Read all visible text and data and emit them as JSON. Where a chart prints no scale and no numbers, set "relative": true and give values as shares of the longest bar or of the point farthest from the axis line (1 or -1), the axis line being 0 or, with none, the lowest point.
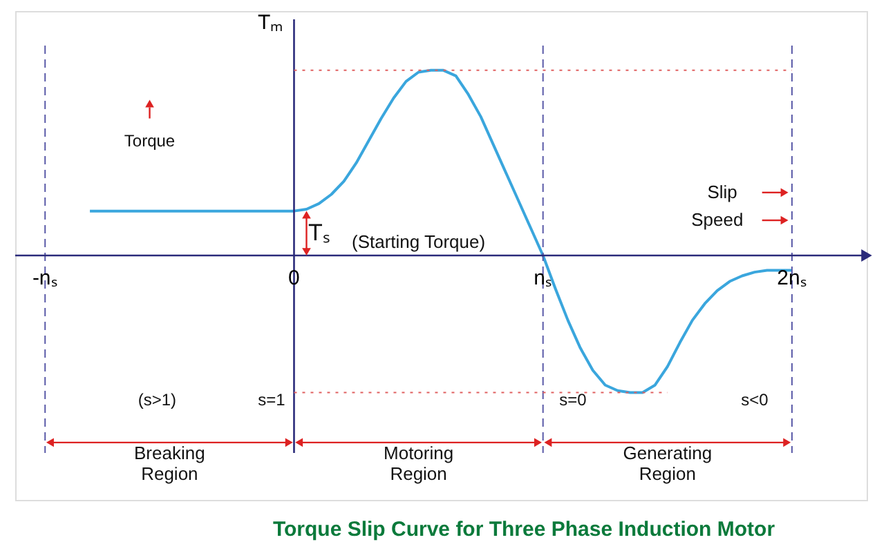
{
  "chart_data": {
    "type": "line",
    "relative": true,
    "title": "Torque Slip Curve for Three Phase Induction Motor",
    "ylabel": "Tₘ",
    "xlim": [
      -1.12,
      2.3
    ],
    "xticks": [
      {
        "value": -1,
        "label": "-nₛ"
      },
      0,
      {
        "value": 1,
        "label": "nₛ"
      },
      {
        "value": 2,
        "label": "2nₛ"
      }
    ],
    "x": [
      -0.82,
      0,
      0.05,
      0.1,
      0.15,
      0.2,
      0.25,
      0.3,
      0.35,
      0.4,
      0.45,
      0.5,
      0.55,
      0.6,
      0.65,
      0.7,
      0.75,
      0.8,
      0.85,
      0.9,
      0.95,
      1.0,
      1.05,
      1.1,
      1.15,
      1.2,
      1.25,
      1.3,
      1.35,
      1.4,
      1.45,
      1.5,
      1.55,
      1.6,
      1.65,
      1.7,
      1.75,
      1.8,
      1.85,
      1.9,
      1.95,
      2.0
    ],
    "series": [
      {
        "color": "#3aa6dd",
        "values": [
          0.24,
          0.24,
          0.25,
          0.28,
          0.33,
          0.4,
          0.5,
          0.62,
          0.74,
          0.85,
          0.94,
          0.99,
          1.0,
          1.0,
          0.97,
          0.87,
          0.75,
          0.6,
          0.45,
          0.3,
          0.15,
          0,
          -0.18,
          -0.35,
          -0.5,
          -0.62,
          -0.7,
          -0.73,
          -0.74,
          -0.74,
          -0.7,
          -0.6,
          -0.47,
          -0.35,
          -0.26,
          -0.19,
          -0.14,
          -0.11,
          -0.09,
          -0.08,
          -0.08,
          -0.08
        ]
      }
    ],
    "ref_lines": [
      {
        "axis": "x",
        "value": 0,
        "color": "#2a2a7a",
        "line_style": "solid"
      },
      {
        "axis": "x",
        "value": -1,
        "color": "#5a5aa8",
        "line_style": "dashed"
      },
      {
        "axis": "x",
        "value": 1,
        "color": "#5a5aa8",
        "line_style": "dashed"
      },
      {
        "axis": "x",
        "value": 2,
        "color": "#5a5aa8",
        "line_style": "dashed"
      },
      {
        "axis": "y",
        "value": 1,
        "color": "#e06060",
        "line_style": "dotted"
      },
      {
        "axis": "y",
        "value": -0.74,
        "color": "#e06060",
        "line_style": "dotted"
      }
    ],
    "annotations": [
      "Torque",
      "(Starting Torque)",
      "Tₛ",
      "Slip",
      "Speed",
      "(s>1)",
      "s=1",
      "s=0",
      "s<0",
      "Breaking Region",
      "Motoring Region",
      "Generating Region"
    ],
    "grid": false,
    "line_style": "solid",
    "marker": "none"
  }
}
